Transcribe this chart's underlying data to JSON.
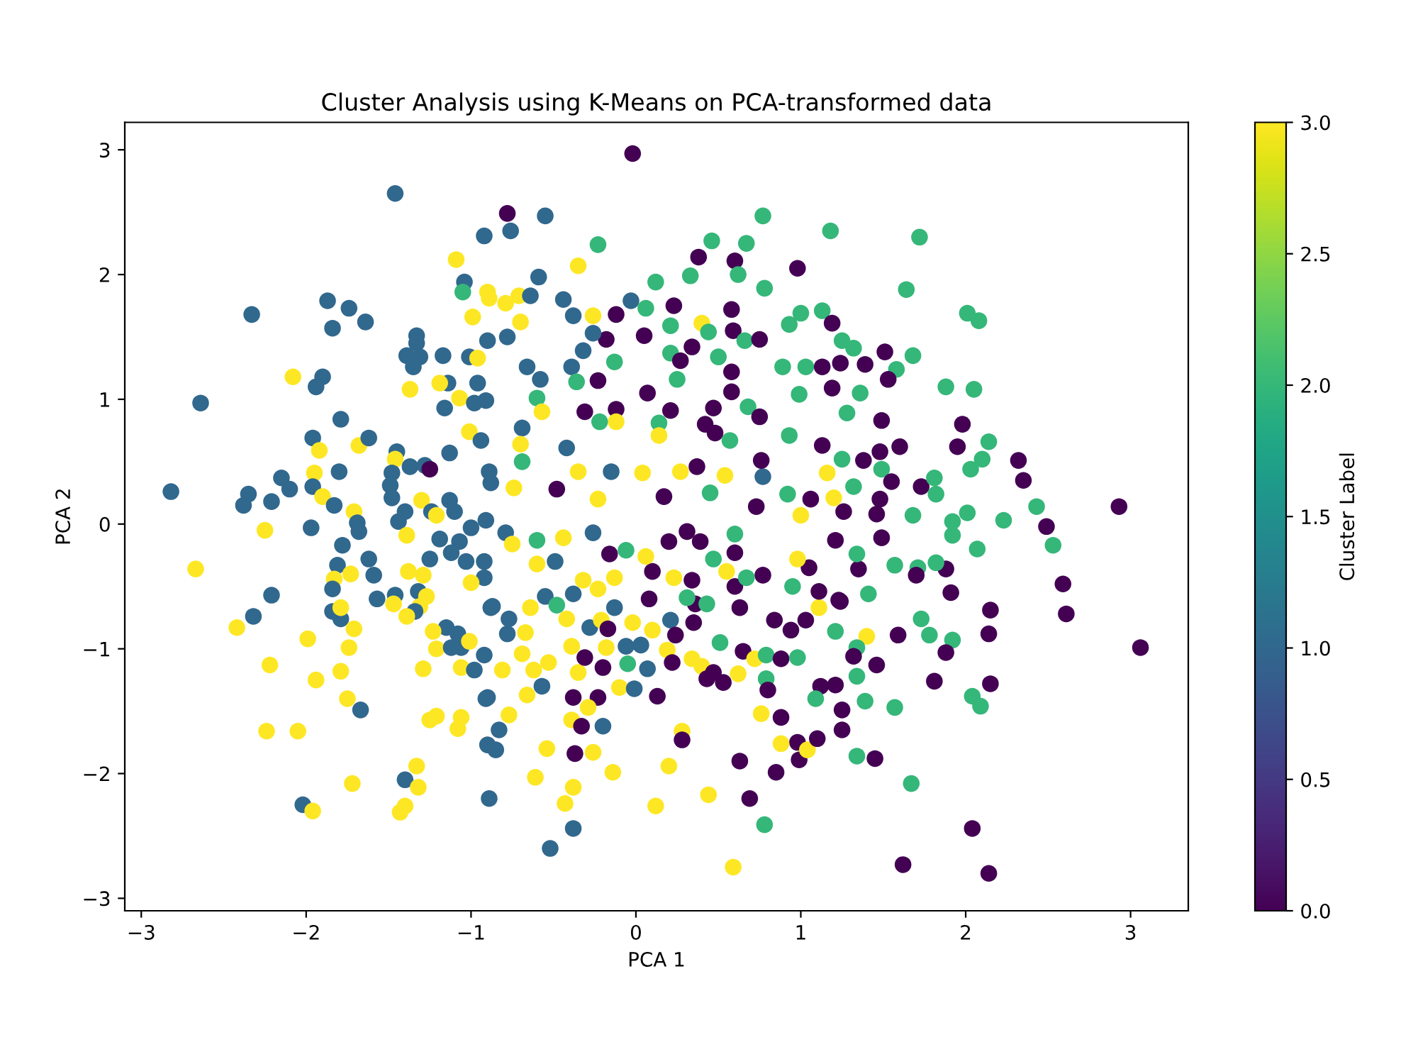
{
  "chart_data": {
    "type": "scatter",
    "title": "Cluster Analysis using K-Means on PCA-transformed data",
    "xlabel": "PCA 1",
    "ylabel": "PCA 2",
    "clabel": "Cluster Label",
    "marker": "circle",
    "xlim": [
      -3.1,
      3.35
    ],
    "ylim": [
      -3.1,
      3.22
    ],
    "xticks": [
      {
        "value": -3,
        "label": "−3"
      },
      {
        "value": -2,
        "label": "−2"
      },
      {
        "value": -1,
        "label": "−1"
      },
      0,
      1,
      2,
      3
    ],
    "yticks": [
      {
        "value": -3,
        "label": "−3"
      },
      {
        "value": -2,
        "label": "−2"
      },
      {
        "value": -1,
        "label": "−1"
      },
      0,
      1,
      2,
      3
    ],
    "clim": [
      0,
      3
    ],
    "cticks": [
      {
        "value": 0,
        "label": "0.0"
      },
      0.5,
      {
        "value": 1,
        "label": "1.0"
      },
      1.5,
      {
        "value": 2,
        "label": "2.0"
      },
      2.5,
      {
        "value": 3,
        "label": "3.0"
      }
    ],
    "series": [
      {
        "x": [
          -1.46,
          -0.92,
          -1.09,
          -1.04,
          -1.05,
          -0.9,
          -0.99,
          -1.87,
          -1.74,
          -1.64,
          -1.84,
          -2.33,
          -2.64,
          -2.08,
          -1.9,
          -1.94,
          -1.33,
          -1.33,
          -1.39,
          -1.31,
          -1.35,
          -1.17,
          -1.01,
          -0.96,
          -0.9,
          -1.37,
          -1.14,
          -1.19,
          -0.96,
          -1.07,
          -1.16,
          -0.98,
          -0.91,
          -1.79,
          -1.96,
          -1.92,
          -1.68,
          -1.62,
          -1.01,
          -0.94,
          -1.45,
          -1.46,
          -1.37,
          -1.28,
          -1.25,
          -1.13,
          -1.48,
          -1.49,
          -1.48,
          -1.8,
          -1.95,
          -1.96,
          -1.9,
          -1.83,
          -2.15,
          -2.1,
          -2.35,
          -2.38,
          -2.21,
          -2.82,
          -1.3,
          -1.13,
          -1.1,
          -1.24,
          -1.21,
          -1.71,
          -1.69,
          -1.4,
          -1.44,
          -1.97,
          -2.25,
          -0.91,
          -1.0,
          -0.89,
          -0.88,
          -2.67,
          -2.21,
          -2.32,
          -2.42,
          -1.99,
          -2.22,
          -1.94,
          -2.24,
          -2.05,
          -1.72,
          -2.02,
          -1.96,
          -1.4,
          -1.32,
          -1.33,
          -1.43,
          -1.4,
          -1.78,
          -1.81,
          -1.83,
          -1.73,
          -1.84,
          -1.84,
          -1.79,
          -1.79,
          -1.71,
          -1.74,
          -1.79,
          -1.75,
          -1.67,
          -1.62,
          -1.59,
          -1.57,
          -1.46,
          -1.47,
          -1.68,
          -1.39,
          -1.19,
          -1.07,
          -1.25,
          -1.12,
          -1.03,
          -0.92,
          -1.38,
          -1.29,
          -0.92,
          -1.0,
          -1.32,
          -1.27,
          -1.31,
          -1.34,
          -1.39,
          -1.15,
          -1.08,
          -1.23,
          -1.21,
          -1.12,
          -1.06,
          -1.01,
          -0.92,
          -1.06,
          -0.98,
          -1.29,
          -0.91,
          -1.25,
          -1.21,
          -1.06,
          -1.08,
          -0.9,
          -0.89,
          -0.88,
          -0.52,
          -0.38,
          -0.43,
          -0.38,
          -0.61,
          -0.14,
          0.12,
          0.2,
          0.44,
          0.59,
          0.69,
          0.78,
          0.63,
          0.85,
          0.98,
          0.99,
          1.04,
          1.1,
          0.88,
          0.88,
          0.76,
          0.28,
          0.28,
          -0.37,
          -0.26,
          -0.54,
          -0.83,
          -0.85,
          -0.77,
          -0.9,
          -0.66,
          -0.57,
          -0.81,
          -0.62,
          -0.53,
          -0.35,
          -0.31,
          -0.2,
          -0.38,
          -0.23,
          -0.29,
          -0.39,
          -0.33,
          -0.2,
          -0.1,
          -0.01,
          0.13,
          0.07,
          -0.05,
          -0.06,
          0.03,
          -0.18,
          -0.39,
          -0.69,
          -0.67,
          -0.78,
          -0.77,
          -0.87,
          -0.64,
          -0.55,
          -0.48,
          -0.42,
          -0.38,
          -0.32,
          -0.23,
          -0.13,
          -0.28,
          -0.21,
          -0.17,
          -0.13,
          -0.02,
          0.1,
          0.08,
          0.21,
          0.24,
          0.19,
          0.22,
          0.35,
          0.36,
          0.31,
          0.43,
          0.34,
          0.4,
          0.47,
          0.43,
          0.53,
          0.62,
          0.51,
          0.65,
          0.72,
          0.79,
          0.79,
          0.8,
          0.88,
          0.98,
          0.63,
          0.84,
          0.94,
          1.03,
          1.11,
          1.23,
          1.21,
          1.12,
          1.21,
          1.09,
          1.25,
          1.25,
          0.6,
          0.6,
          0.77,
          0.95,
          1.05,
          1.11,
          0.98,
          0.67,
          0.55,
          0.47,
          0.39,
          0.34,
          0.23,
          0.31,
          0.2,
          0.1,
          0.06,
          -0.06,
          -0.16,
          -0.26,
          -0.44,
          -0.6,
          -0.49,
          -0.6,
          -0.79,
          -0.75,
          1.21,
          0.6,
          -0.02,
          -0.78,
          -0.55,
          -0.76,
          -0.23,
          -0.35,
          -0.59,
          0.77,
          1.18,
          0.46,
          0.67,
          0.38,
          0.6,
          0.98,
          0.33,
          0.12,
          0.62,
          0.78,
          -0.89,
          -0.79,
          -0.71,
          -0.64,
          -0.44,
          -0.38,
          -0.26,
          -0.03,
          0.06,
          -0.12,
          0.23,
          0.58,
          0.4,
          0.21,
          0.05,
          -0.18,
          -0.26,
          -0.7,
          -0.78,
          -0.32,
          -0.13,
          -0.39,
          -0.23,
          -0.36,
          -0.66,
          -0.58,
          -0.6,
          -0.57,
          0.34,
          0.44,
          0.21,
          0.27,
          0.5,
          0.59,
          0.66,
          0.75,
          0.58,
          0.58,
          0.47,
          0.07,
          0.25,
          -0.31,
          -0.12,
          -0.12,
          0.14,
          0.21,
          0.14,
          0.68,
          0.75,
          0.42,
          0.48,
          0.57,
          0.93,
          0.99,
          1.03,
          0.89,
          1.0,
          0.93,
          1.13,
          1.19,
          1.13,
          1.19,
          1.13,
          1.16,
          1.2,
          -0.22,
          -0.69,
          -0.7,
          -0.69,
          -0.42,
          -0.35,
          -0.15,
          -0.23,
          -0.74,
          -0.48,
          0.04,
          0.27,
          0.37,
          0.17,
          0.45,
          0.54,
          0.77,
          0.76,
          0.92,
          1.0,
          1.06,
          0.73,
          1.72,
          1.64,
          2.01,
          2.08,
          1.51,
          1.68,
          1.58,
          1.53,
          1.39,
          1.32,
          1.25,
          1.24,
          1.36,
          1.28,
          1.88,
          2.05,
          1.49,
          1.98,
          1.95,
          1.6,
          1.48,
          2.14,
          2.1,
          2.03,
          1.25,
          1.38,
          1.49,
          1.55,
          1.73,
          1.81,
          1.82,
          1.32,
          1.48,
          2.32,
          2.35,
          2.43,
          2.93,
          2.49,
          2.23,
          2.01,
          1.92,
          1.68,
          1.26,
          1.46,
          2.53,
          2.59,
          2.61,
          3.06,
          2.07,
          1.88,
          1.91,
          1.82,
          1.71,
          1.57,
          2.15,
          2.14,
          2.15,
          2.04,
          2.09,
          1.73,
          1.78,
          1.92,
          1.88,
          1.81,
          1.59,
          1.46,
          1.4,
          1.34,
          1.32,
          1.34,
          1.39,
          1.57,
          1.34,
          1.45,
          1.67,
          2.04,
          1.62,
          2.14,
          1.41,
          1.24,
          1.35,
          1.34,
          1.92,
          1.49,
          1.7
        ],
        "values": [
          2.65,
          2.31,
          2.12,
          1.94,
          1.86,
          1.86,
          1.66,
          1.79,
          1.73,
          1.62,
          1.57,
          1.68,
          0.97,
          1.18,
          1.18,
          1.1,
          1.51,
          1.45,
          1.35,
          1.34,
          1.26,
          1.35,
          1.34,
          1.33,
          1.47,
          1.08,
          1.13,
          1.13,
          1.13,
          1.01,
          0.93,
          0.97,
          0.99,
          0.84,
          0.69,
          0.59,
          0.63,
          0.69,
          0.74,
          0.67,
          0.58,
          0.52,
          0.46,
          0.47,
          0.44,
          0.57,
          0.41,
          0.31,
          0.21,
          0.42,
          0.41,
          0.3,
          0.22,
          0.15,
          0.37,
          0.28,
          0.24,
          0.15,
          0.18,
          0.26,
          0.19,
          0.19,
          0.1,
          0.1,
          0.07,
          0.1,
          0.01,
          0.1,
          0.02,
          -0.03,
          -0.05,
          0.03,
          -0.03,
          0.42,
          0.33,
          -0.36,
          -0.57,
          -0.74,
          -0.83,
          -0.92,
          -1.13,
          -1.25,
          -1.66,
          -1.66,
          -2.08,
          -2.25,
          -2.3,
          -2.05,
          -2.11,
          -1.94,
          -2.31,
          -2.26,
          -0.17,
          -0.33,
          -0.44,
          -0.4,
          -0.52,
          -0.7,
          -0.76,
          -0.67,
          -0.84,
          -0.99,
          -1.18,
          -1.4,
          -1.49,
          -0.28,
          -0.41,
          -0.6,
          -0.57,
          -0.64,
          -0.06,
          -0.09,
          -0.12,
          -0.14,
          -0.28,
          -0.23,
          -0.3,
          -0.3,
          -0.38,
          -0.41,
          -0.43,
          -0.47,
          -0.54,
          -0.58,
          -0.66,
          -0.7,
          -0.74,
          -0.83,
          -0.88,
          -0.86,
          -1.0,
          -0.99,
          -0.99,
          -0.94,
          -1.05,
          -1.15,
          -1.17,
          -1.16,
          -1.4,
          -1.57,
          -1.54,
          -1.55,
          -1.64,
          -1.77,
          -2.2,
          -0.67,
          -2.6,
          -2.44,
          -2.24,
          -2.11,
          -2.03,
          -1.99,
          -2.26,
          -1.94,
          -2.17,
          -2.75,
          -2.2,
          -2.41,
          -1.9,
          -1.99,
          -1.75,
          -1.89,
          -1.81,
          -1.72,
          -1.76,
          -1.55,
          -1.52,
          -1.66,
          -1.73,
          -1.84,
          -1.83,
          -1.8,
          -1.65,
          -1.81,
          -1.53,
          -1.39,
          -1.37,
          -1.3,
          -1.17,
          -1.17,
          -1.11,
          -1.19,
          -1.07,
          -1.15,
          -1.39,
          -1.39,
          -1.47,
          -1.57,
          -1.62,
          -1.62,
          -1.31,
          -1.32,
          -1.38,
          -1.16,
          -1.12,
          -0.98,
          -0.97,
          -0.99,
          -0.98,
          -1.04,
          -0.87,
          -0.88,
          -0.76,
          -0.66,
          -0.67,
          -0.58,
          -0.65,
          -0.76,
          -0.56,
          -0.45,
          -0.52,
          -0.43,
          -0.83,
          -0.77,
          -0.84,
          -0.67,
          -0.79,
          -0.85,
          -0.6,
          -0.77,
          -0.89,
          -1.01,
          -1.11,
          -0.79,
          -0.64,
          -0.59,
          -0.64,
          -1.08,
          -1.14,
          -1.19,
          -1.24,
          -1.27,
          -1.2,
          -0.95,
          -1.02,
          -1.08,
          -1.05,
          -1.24,
          -1.33,
          -1.08,
          -1.07,
          -0.67,
          -0.77,
          -0.85,
          -0.77,
          -0.67,
          -0.61,
          -0.86,
          -1.3,
          -1.29,
          -1.4,
          -1.49,
          -1.65,
          -0.23,
          -0.5,
          -0.41,
          -0.5,
          -0.35,
          -0.54,
          -0.28,
          -0.43,
          -0.38,
          -0.28,
          -0.14,
          -0.45,
          -0.43,
          -0.06,
          -0.14,
          -0.38,
          -0.26,
          -0.21,
          -0.24,
          -0.07,
          -0.11,
          -0.32,
          -0.3,
          -0.13,
          -0.07,
          -0.16,
          -0.13,
          -0.08,
          2.97,
          2.49,
          2.47,
          2.35,
          2.24,
          2.07,
          1.98,
          2.47,
          2.35,
          2.27,
          2.25,
          2.14,
          2.11,
          2.05,
          1.99,
          1.94,
          2.0,
          1.89,
          1.81,
          1.77,
          1.83,
          1.83,
          1.8,
          1.67,
          1.67,
          1.79,
          1.73,
          1.68,
          1.75,
          1.72,
          1.61,
          1.59,
          1.51,
          1.48,
          1.53,
          1.62,
          1.5,
          1.39,
          1.3,
          1.26,
          1.15,
          1.14,
          1.26,
          1.16,
          1.01,
          0.9,
          1.42,
          1.54,
          1.37,
          1.31,
          1.34,
          1.55,
          1.47,
          1.48,
          1.22,
          1.06,
          0.93,
          1.05,
          1.16,
          0.9,
          0.92,
          0.82,
          0.81,
          0.91,
          0.71,
          0.94,
          0.86,
          0.8,
          0.73,
          0.67,
          0.71,
          1.04,
          1.26,
          1.26,
          1.69,
          1.6,
          1.71,
          1.61,
          1.26,
          1.09,
          0.63,
          0.41,
          0.21,
          0.82,
          0.77,
          0.64,
          0.5,
          0.61,
          0.42,
          0.42,
          0.2,
          0.29,
          0.28,
          0.41,
          0.42,
          0.46,
          0.22,
          0.25,
          0.39,
          0.38,
          0.51,
          0.24,
          0.07,
          0.2,
          0.14,
          2.3,
          1.88,
          1.69,
          1.63,
          1.38,
          1.35,
          1.24,
          1.16,
          1.28,
          1.41,
          1.47,
          1.29,
          1.05,
          0.89,
          1.1,
          1.08,
          0.83,
          0.8,
          0.62,
          0.62,
          0.58,
          0.66,
          0.52,
          0.44,
          0.52,
          0.51,
          0.44,
          0.34,
          0.3,
          0.37,
          0.24,
          0.3,
          0.2,
          0.51,
          0.35,
          0.14,
          0.14,
          -0.02,
          0.03,
          0.09,
          0.02,
          0.07,
          0.1,
          0.08,
          -0.17,
          -0.48,
          -0.72,
          -0.99,
          -0.2,
          -0.36,
          -0.55,
          -0.31,
          -0.35,
          -0.33,
          -0.69,
          -0.88,
          -1.28,
          -1.38,
          -1.46,
          -0.76,
          -0.89,
          -0.93,
          -1.03,
          -1.26,
          -0.89,
          -1.13,
          -0.9,
          -0.99,
          -1.06,
          -1.22,
          -1.42,
          -1.47,
          -1.86,
          -1.88,
          -2.08,
          -2.44,
          -2.73,
          -2.8,
          -0.56,
          -0.62,
          -0.36,
          -0.24,
          -0.09,
          -0.11,
          -0.41
        ],
        "cvalues": [
          1,
          1,
          3,
          1,
          2,
          3,
          3,
          1,
          1,
          1,
          1,
          1,
          1,
          3,
          1,
          1,
          1,
          1,
          1,
          1,
          1,
          1,
          1,
          3,
          1,
          3,
          1,
          3,
          1,
          3,
          1,
          1,
          1,
          1,
          1,
          3,
          3,
          1,
          3,
          1,
          1,
          3,
          1,
          1,
          0,
          1,
          1,
          1,
          1,
          1,
          3,
          1,
          3,
          1,
          1,
          1,
          1,
          1,
          1,
          1,
          3,
          1,
          1,
          1,
          3,
          3,
          1,
          1,
          1,
          1,
          3,
          1,
          1,
          1,
          1,
          3,
          1,
          1,
          3,
          3,
          3,
          3,
          3,
          3,
          3,
          1,
          3,
          1,
          3,
          3,
          3,
          3,
          1,
          1,
          3,
          3,
          1,
          1,
          1,
          3,
          3,
          3,
          3,
          3,
          1,
          1,
          1,
          1,
          1,
          3,
          1,
          3,
          1,
          1,
          1,
          1,
          1,
          1,
          3,
          3,
          1,
          3,
          1,
          3,
          3,
          1,
          3,
          1,
          1,
          3,
          3,
          1,
          1,
          3,
          1,
          3,
          1,
          3,
          1,
          3,
          3,
          3,
          3,
          1,
          1,
          1,
          1,
          1,
          3,
          3,
          3,
          3,
          3,
          3,
          3,
          3,
          0,
          2,
          0,
          0,
          0,
          0,
          3,
          0,
          3,
          0,
          3,
          3,
          0,
          0,
          3,
          3,
          1,
          1,
          3,
          1,
          3,
          1,
          3,
          3,
          3,
          3,
          0,
          0,
          0,
          0,
          3,
          3,
          0,
          1,
          3,
          1,
          0,
          1,
          2,
          1,
          1,
          3,
          3,
          3,
          3,
          1,
          1,
          1,
          3,
          1,
          2,
          3,
          1,
          3,
          3,
          3,
          1,
          3,
          0,
          1,
          3,
          3,
          0,
          1,
          0,
          3,
          0,
          0,
          0,
          2,
          2,
          3,
          3,
          0,
          0,
          0,
          3,
          2,
          0,
          3,
          2,
          2,
          0,
          0,
          2,
          0,
          0,
          0,
          0,
          3,
          0,
          2,
          0,
          0,
          2,
          0,
          0,
          0,
          0,
          0,
          2,
          0,
          0,
          3,
          2,
          3,
          2,
          0,
          0,
          3,
          0,
          0,
          0,
          3,
          2,
          0,
          1,
          3,
          3,
          1,
          2,
          1,
          3,
          0,
          2,
          0,
          0,
          1,
          1,
          2,
          3,
          1,
          2,
          2,
          2,
          2,
          0,
          0,
          0,
          2,
          2,
          2,
          2,
          3,
          3,
          3,
          1,
          1,
          1,
          3,
          1,
          2,
          0,
          0,
          0,
          3,
          2,
          0,
          0,
          1,
          3,
          1,
          1,
          2,
          1,
          0,
          2,
          1,
          1,
          2,
          3,
          0,
          2,
          2,
          0,
          2,
          0,
          2,
          0,
          0,
          0,
          0,
          0,
          2,
          0,
          0,
          3,
          2,
          0,
          3,
          2,
          0,
          0,
          0,
          2,
          2,
          2,
          2,
          2,
          2,
          2,
          2,
          0,
          0,
          0,
          0,
          3,
          3,
          2,
          1,
          3,
          2,
          1,
          3,
          1,
          3,
          3,
          0,
          3,
          3,
          0,
          0,
          2,
          3,
          1,
          0,
          2,
          3,
          0,
          0,
          2,
          2,
          2,
          2,
          0,
          2,
          2,
          0,
          0,
          2,
          2,
          0,
          2,
          2,
          2,
          2,
          0,
          0,
          0,
          0,
          0,
          2,
          2,
          2,
          2,
          0,
          2,
          0,
          0,
          2,
          2,
          2,
          0,
          0,
          0,
          2,
          0,
          0,
          2,
          2,
          2,
          2,
          0,
          0,
          2,
          0,
          0,
          0,
          2,
          0,
          0,
          2,
          2,
          2,
          0,
          0,
          0,
          2,
          2,
          2,
          2,
          2,
          0,
          0,
          0,
          0,
          3,
          2,
          0,
          2,
          2,
          2,
          2,
          0,
          2,
          0,
          0,
          0,
          2,
          0,
          0,
          2,
          2,
          0,
          0
        ]
      }
    ]
  }
}
